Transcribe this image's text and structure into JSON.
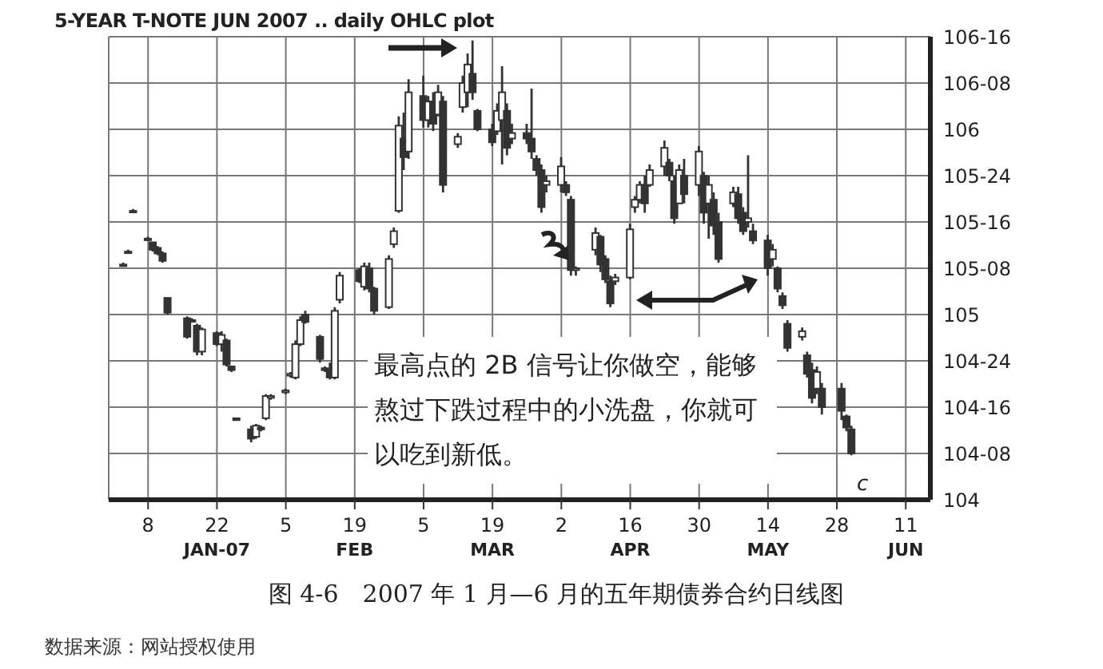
{
  "chart_data": {
    "type": "candlestick",
    "title": "5-YEAR T-NOTE JUN 2007 .. daily OHLC plot",
    "annotations": [
      "最高点的 2B 信号让你做空，能够熬过下跌过程中的小洗盘，你就可以吃到新低。",
      "图 4-6　2007 年 1 月—6 月的五年期债券合约日线图",
      "数据来源：网站授权使用",
      "c"
    ],
    "color": "#333333",
    "grid": true,
    "xlim": [
      "2006-12-31",
      "2007-06-16"
    ],
    "xticks": [
      {
        "value": "2007-01-08",
        "label": "8"
      },
      {
        "value": "2007-01-22",
        "label": "22\nJAN-07"
      },
      {
        "value": "2007-02-05",
        "label": "5"
      },
      {
        "value": "2007-02-19",
        "label": "19\nFEB"
      },
      {
        "value": "2007-03-05",
        "label": "5"
      },
      {
        "value": "2007-03-19",
        "label": "19\nMAR"
      },
      {
        "value": "2007-04-02",
        "label": "2"
      },
      {
        "value": "2007-04-16",
        "label": "16\nAPR"
      },
      {
        "value": "2007-04-30",
        "label": "30"
      },
      {
        "value": "2007-05-14",
        "label": "14\nMAY"
      },
      {
        "value": "2007-05-28",
        "label": "28"
      },
      {
        "value": "2007-06-11",
        "label": "11\nJUN"
      }
    ],
    "ylim": [
      104,
      106.5
    ],
    "yticks": [
      104,
      {
        "value": 104.25,
        "label": "104-08"
      },
      {
        "value": 104.5,
        "label": "104-16"
      },
      {
        "value": 104.75,
        "label": "104-24"
      },
      105,
      {
        "value": 105.25,
        "label": "105-08"
      },
      {
        "value": 105.5,
        "label": "105-16"
      },
      {
        "value": 105.75,
        "label": "105-24"
      },
      106,
      {
        "value": 106.25,
        "label": "106-08"
      },
      {
        "value": 106.5,
        "label": "106-16"
      }
    ],
    "x": [
      "2007-01-03",
      "2007-01-04",
      "2007-01-05",
      "2007-01-08",
      "2007-01-09",
      "2007-01-10",
      "2007-01-11",
      "2007-01-12",
      "2007-01-16",
      "2007-01-17",
      "2007-01-18",
      "2007-01-19",
      "2007-01-22",
      "2007-01-23",
      "2007-01-24",
      "2007-01-25",
      "2007-01-26",
      "2007-01-29",
      "2007-01-30",
      "2007-01-31",
      "2007-02-01",
      "2007-02-02",
      "2007-02-05",
      "2007-02-06",
      "2007-02-07",
      "2007-02-08",
      "2007-02-09",
      "2007-02-12",
      "2007-02-13",
      "2007-02-14",
      "2007-02-15",
      "2007-02-16",
      "2007-02-20",
      "2007-02-21",
      "2007-02-22",
      "2007-02-23",
      "2007-02-26",
      "2007-02-27",
      "2007-02-28",
      "2007-03-01",
      "2007-03-02",
      "2007-03-05",
      "2007-03-06",
      "2007-03-07",
      "2007-03-08",
      "2007-03-09",
      "2007-03-12",
      "2007-03-13",
      "2007-03-14",
      "2007-03-15",
      "2007-03-16",
      "2007-03-19",
      "2007-03-20",
      "2007-03-21",
      "2007-03-22",
      "2007-03-23",
      "2007-03-26",
      "2007-03-27",
      "2007-03-28",
      "2007-03-29",
      "2007-03-30",
      "2007-04-02",
      "2007-04-03",
      "2007-04-04",
      "2007-04-05",
      "2007-04-09",
      "2007-04-10",
      "2007-04-11",
      "2007-04-12",
      "2007-04-13",
      "2007-04-16",
      "2007-04-17",
      "2007-04-18",
      "2007-04-19",
      "2007-04-20",
      "2007-04-23",
      "2007-04-24",
      "2007-04-25",
      "2007-04-26",
      "2007-04-27",
      "2007-04-30",
      "2007-05-01",
      "2007-05-02",
      "2007-05-03",
      "2007-05-04",
      "2007-05-07",
      "2007-05-08",
      "2007-05-09",
      "2007-05-10",
      "2007-05-11",
      "2007-05-14",
      "2007-05-15",
      "2007-05-16",
      "2007-05-17",
      "2007-05-18",
      "2007-05-21",
      "2007-05-22",
      "2007-05-23",
      "2007-05-24",
      "2007-05-25",
      "2007-05-29",
      "2007-05-30",
      "2007-05-31"
    ],
    "ohlc": [
      [
        105.27,
        105.28,
        105.26,
        105.27
      ],
      [
        105.34,
        105.35,
        105.33,
        105.34
      ],
      [
        105.56,
        105.57,
        105.55,
        105.56
      ],
      [
        105.41,
        105.42,
        105.4,
        105.41
      ],
      [
        105.39,
        105.39,
        105.34,
        105.35
      ],
      [
        105.36,
        105.37,
        105.32,
        105.33
      ],
      [
        105.33,
        105.34,
        105.28,
        105.29
      ],
      [
        105.09,
        105.09,
        105,
        105.01
      ],
      [
        104.98,
        104.99,
        104.87,
        104.88
      ],
      [
        104.97,
        104.98,
        104.96,
        104.97
      ],
      [
        104.94,
        104.95,
        104.78,
        104.8
      ],
      [
        104.8,
        104.93,
        104.78,
        104.92
      ],
      [
        104.9,
        104.91,
        104.83,
        104.84
      ],
      [
        104.84,
        104.91,
        104.8,
        104.89
      ],
      [
        104.86,
        104.87,
        104.72,
        104.73
      ],
      [
        104.72,
        104.72,
        104.69,
        104.7
      ],
      [
        104.44,
        104.44,
        104.43,
        104.43
      ],
      [
        104.38,
        104.4,
        104.31,
        104.33
      ],
      [
        104.34,
        104.41,
        104.33,
        104.4
      ],
      [
        104.39,
        104.4,
        104.37,
        104.38
      ],
      [
        104.44,
        104.57,
        104.43,
        104.56
      ],
      [
        104.55,
        104.57,
        104.54,
        104.56
      ],
      [
        104.58,
        104.6,
        104.57,
        104.59
      ],
      [
        104.67,
        104.69,
        104.66,
        104.68
      ],
      [
        104.66,
        104.86,
        104.65,
        104.84
      ],
      [
        104.84,
        104.99,
        104.83,
        104.97
      ],
      [
        105,
        105.02,
        104.95,
        104.96
      ],
      [
        104.88,
        104.89,
        104.74,
        104.76
      ],
      [
        104.71,
        104.72,
        104.69,
        104.7
      ],
      [
        104.7,
        104.74,
        104.65,
        104.66
      ],
      [
        104.66,
        105.04,
        104.65,
        105.02
      ],
      [
        105.08,
        105.23,
        105.06,
        105.21
      ],
      [
        105.24,
        105.25,
        105.17,
        105.18
      ],
      [
        105.15,
        105.28,
        105.13,
        105.26
      ],
      [
        105.25,
        105.28,
        105.12,
        105.14
      ],
      [
        105.14,
        105.15,
        105,
        105.02
      ],
      [
        105.04,
        105.32,
        105.03,
        105.3
      ],
      [
        105.38,
        105.47,
        105.36,
        105.45
      ],
      [
        105.56,
        106.07,
        105.55,
        106.02
      ],
      [
        105.95,
        106.09,
        105.78,
        105.85
      ],
      [
        105.88,
        106.27,
        105.84,
        106.2
      ],
      [
        106.18,
        106.29,
        106.01,
        106.05
      ],
      [
        106.05,
        106.18,
        106.01,
        106.15
      ],
      [
        106.15,
        106.2,
        105.99,
        106.03
      ],
      [
        106.08,
        106.24,
        106.07,
        106.2
      ],
      [
        106.15,
        106.18,
        105.66,
        105.7
      ],
      [
        105.92,
        105.98,
        105.9,
        105.96
      ],
      [
        106.12,
        106.29,
        106.09,
        106.25
      ],
      [
        106.2,
        106.41,
        106.12,
        106.35
      ],
      [
        106.3,
        106.48,
        106.16,
        106.2
      ],
      [
        106.1,
        106.11,
        105.99,
        106
      ],
      [
        106,
        106.03,
        105.91,
        105.93
      ],
      [
        105.99,
        106.14,
        105.97,
        106.1
      ],
      [
        106.05,
        106.34,
        105.81,
        106.2
      ],
      [
        106.1,
        106.14,
        105.86,
        105.9
      ],
      [
        105.95,
        106.03,
        105.92,
        105.98
      ],
      [
        105.98,
        106.03,
        105.92,
        105.95
      ],
      [
        105.95,
        106.22,
        105.84,
        105.88
      ],
      [
        105.84,
        105.86,
        105.75,
        105.78
      ],
      [
        105.78,
        105.81,
        105.55,
        105.58
      ],
      [
        105.7,
        105.75,
        105.66,
        105.72
      ],
      [
        105.7,
        105.85,
        105.66,
        105.8
      ],
      [
        105.7,
        105.72,
        105.64,
        105.66
      ],
      [
        105.62,
        105.64,
        105.21,
        105.24
      ],
      [
        105.24,
        105.26,
        105.21,
        105.25
      ],
      [
        105.35,
        105.47,
        105.32,
        105.44
      ],
      [
        105.42,
        105.43,
        105.23,
        105.27
      ],
      [
        105.3,
        105.32,
        105.17,
        105.19
      ],
      [
        105.18,
        105.21,
        105.04,
        105.06
      ],
      [
        105.18,
        105.22,
        105.16,
        105.2
      ],
      [
        105.2,
        105.49,
        105.19,
        105.46
      ],
      [
        105.58,
        105.64,
        105.55,
        105.62
      ],
      [
        105.62,
        105.72,
        105.6,
        105.7
      ],
      [
        105.7,
        105.75,
        105.55,
        105.6
      ],
      [
        105.7,
        105.81,
        105.69,
        105.78
      ],
      [
        105.8,
        105.94,
        105.75,
        105.9
      ],
      [
        105.82,
        105.84,
        105.72,
        105.75
      ],
      [
        105.72,
        105.75,
        105.49,
        105.52
      ],
      [
        105.6,
        105.81,
        105.6,
        105.78
      ],
      [
        105.75,
        105.84,
        105.6,
        105.65
      ],
      [
        105.7,
        105.91,
        105.64,
        105.88
      ],
      [
        105.75,
        105.77,
        105.49,
        105.55
      ],
      [
        105.6,
        105.75,
        105.41,
        105.7
      ],
      [
        105.62,
        105.66,
        105.43,
        105.48
      ],
      [
        105.5,
        105.55,
        105.28,
        105.3
      ],
      [
        105.6,
        105.69,
        105.58,
        105.66
      ],
      [
        105.65,
        105.69,
        105.49,
        105.52
      ],
      [
        105.55,
        105.58,
        105.43,
        105.45
      ],
      [
        105.5,
        105.86,
        105.47,
        105.52
      ],
      [
        105.45,
        105.49,
        105.38,
        105.4
      ],
      [
        105.4,
        105.43,
        105.21,
        105.25
      ],
      [
        105.3,
        105.38,
        105.26,
        105.35
      ],
      [
        105.25,
        105.26,
        105.12,
        105.14
      ],
      [
        105.1,
        105.12,
        105.03,
        105.05
      ],
      [
        104.95,
        104.97,
        104.8,
        104.82
      ],
      [
        104.88,
        104.93,
        104.86,
        104.91
      ],
      [
        104.78,
        104.8,
        104.66,
        104.68
      ],
      [
        104.7,
        104.74,
        104.52,
        104.55
      ],
      [
        104.6,
        104.72,
        104.57,
        104.69
      ],
      [
        104.6,
        104.63,
        104.46,
        104.5
      ],
      [
        104.6,
        104.63,
        104.43,
        104.48
      ],
      [
        104.45,
        104.46,
        104.37,
        104.39
      ],
      [
        104.38,
        104.4,
        104.24,
        104.25
      ]
    ]
  }
}
